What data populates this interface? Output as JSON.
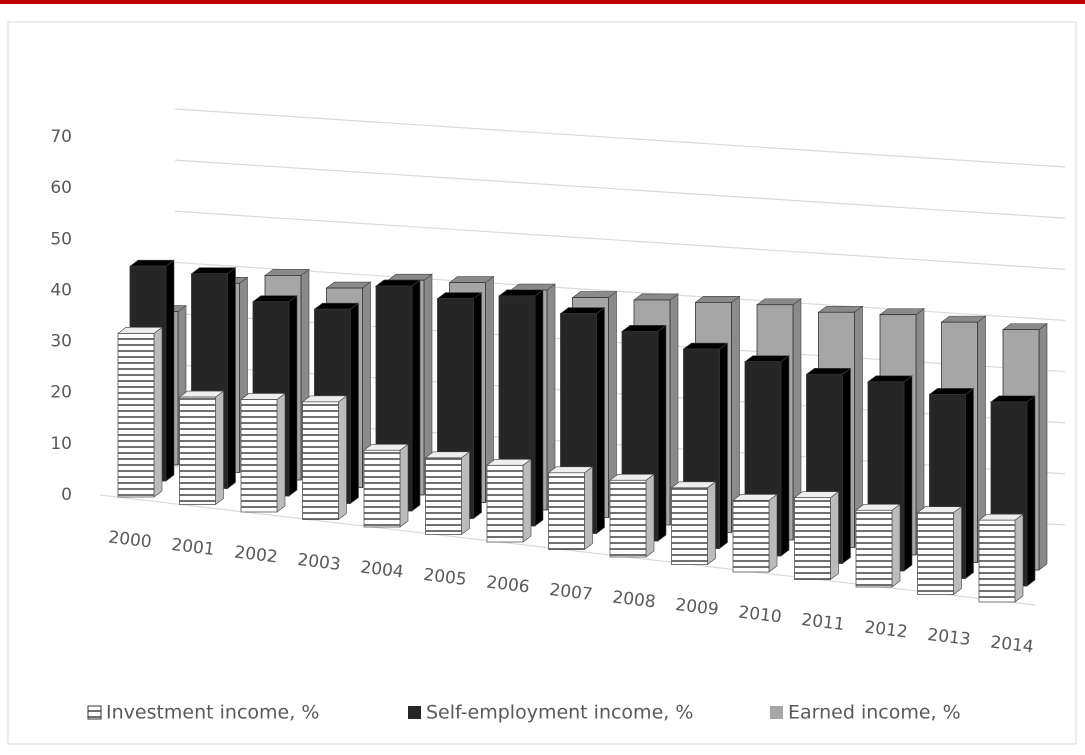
{
  "chart_data": {
    "type": "bar3d",
    "categories": [
      "2000",
      "2001",
      "2002",
      "2003",
      "2004",
      "2005",
      "2006",
      "2007",
      "2008",
      "2009",
      "2010",
      "2011",
      "2012",
      "2013",
      "2014"
    ],
    "series": [
      {
        "name": "Investment income, %",
        "color": "#ffffff",
        "values": [
          32,
          21,
          22,
          23,
          15,
          15,
          15,
          15,
          15,
          15,
          14,
          16,
          15,
          16,
          16
        ]
      },
      {
        "name": "Self-employment income, %",
        "color": "#262626",
        "values": [
          42,
          42,
          38,
          38,
          44,
          43,
          45,
          43,
          41,
          39,
          38,
          37,
          37,
          36,
          36
        ]
      },
      {
        "name": "Earned income, %",
        "color": "#a6a6a6",
        "values": [
          30,
          37,
          40,
          39,
          42,
          43,
          43,
          43,
          44,
          45,
          46,
          46,
          47,
          47,
          47
        ]
      }
    ],
    "ylim": [
      0,
      70
    ],
    "yticks": [
      0,
      10,
      20,
      30,
      40,
      50,
      60,
      70
    ],
    "grid": true
  }
}
